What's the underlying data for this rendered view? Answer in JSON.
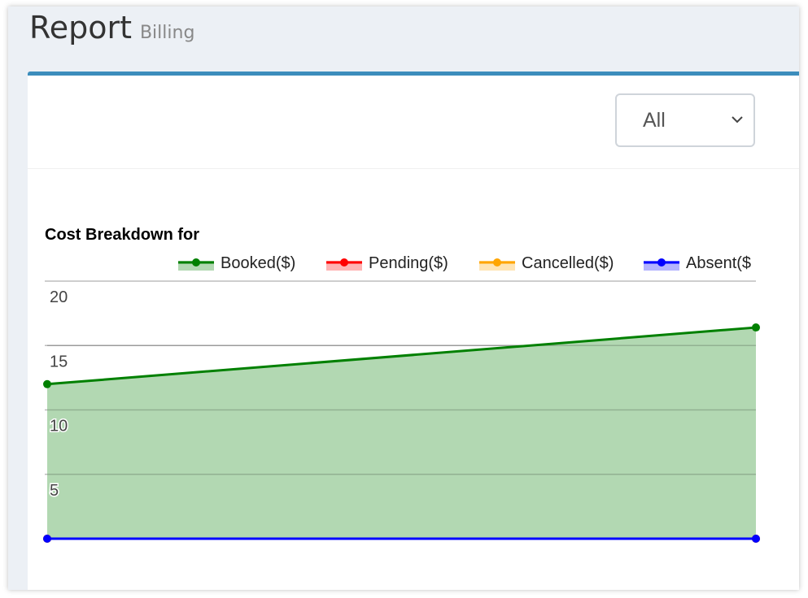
{
  "header": {
    "title": "Report",
    "subtitle": "Billing"
  },
  "filter": {
    "selected": "All"
  },
  "icons": {
    "select_chevron": "chevron-down-icon"
  },
  "colors": {
    "accent": "#3c8dbc"
  },
  "chart_data": {
    "type": "area",
    "title": "Cost Breakdown for",
    "xlabel": "",
    "ylabel": "",
    "x": [
      "",
      ""
    ],
    "ylim": [
      0,
      20
    ],
    "yticks": [
      5,
      10,
      15,
      20
    ],
    "grid": true,
    "legend_position": "top",
    "series": [
      {
        "name": "Booked($)",
        "values": [
          12.0,
          16.4
        ],
        "color": "#008000",
        "fill": "#b2d8b2",
        "filled": true
      },
      {
        "name": "Pending($)",
        "values": [
          0,
          0
        ],
        "color": "#ff0000",
        "fill": "#ffb3b3",
        "filled": false
      },
      {
        "name": "Cancelled($)",
        "values": [
          0,
          0
        ],
        "color": "#ffa500",
        "fill": "#ffe4b3",
        "filled": false
      },
      {
        "name": "Absent($",
        "values": [
          0,
          0
        ],
        "color": "#0000ff",
        "fill": "#b3b3ff",
        "filled": false
      }
    ]
  }
}
